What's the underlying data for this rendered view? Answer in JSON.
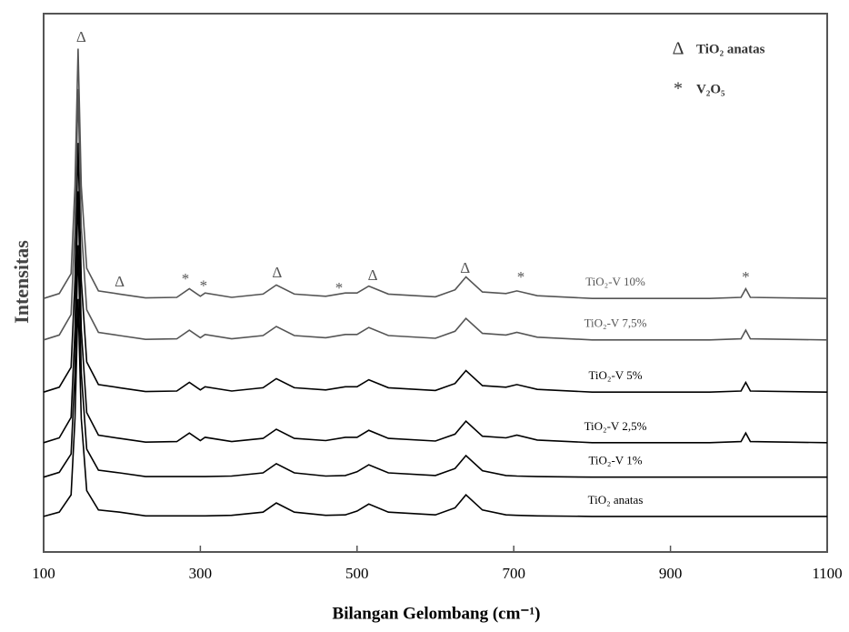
{
  "chart_data": {
    "type": "line",
    "xlabel": "Bilangan Gelombang (cm⁻¹)",
    "ylabel": "Intensitas",
    "x": [
      100,
      120,
      135,
      140,
      144,
      148,
      155,
      170,
      197,
      230,
      270,
      286,
      300,
      306,
      340,
      380,
      397,
      420,
      460,
      485,
      500,
      515,
      540,
      600,
      625,
      639,
      660,
      690,
      704,
      730,
      800,
      950,
      990,
      996,
      1002,
      1100
    ],
    "xlim": [
      100,
      1100
    ],
    "xticks": [
      100,
      300,
      500,
      700,
      900,
      1100
    ],
    "ylim": [
      0,
      100
    ],
    "series": [
      {
        "name": "TiO₂ anatas",
        "color": "#000000",
        "values": [
          6.6,
          7.4,
          10.6,
          24.8,
          47,
          24.8,
          11.4,
          7.8,
          7.4,
          6.7,
          6.7,
          6.7,
          6.7,
          6.7,
          6.8,
          7.4,
          9.1,
          7.4,
          6.8,
          6.9,
          7.6,
          8.9,
          7.4,
          6.9,
          8.2,
          10.6,
          7.8,
          6.9,
          6.8,
          6.7,
          6.6,
          6.6,
          6.6,
          6.6,
          6.6,
          6.6
        ]
      },
      {
        "name": "TiO₂-V 1%",
        "color": "#000000",
        "values": [
          13.9,
          14.8,
          18.2,
          33.3,
          57,
          33.3,
          19.1,
          15.2,
          14.7,
          14,
          14,
          14,
          14,
          14,
          14.1,
          14.7,
          16.4,
          14.7,
          14.1,
          14.2,
          14.9,
          16.2,
          14.7,
          14.2,
          15.5,
          17.9,
          15.1,
          14.2,
          14.1,
          14,
          13.9,
          13.9,
          13.9,
          13.9,
          13.9,
          13.9
        ]
      },
      {
        "name": "TiO₂-V 2,5%",
        "color": "#000000",
        "values": [
          20.3,
          21.2,
          25,
          41.3,
          67,
          41.3,
          25.9,
          21.7,
          21.1,
          20.4,
          20.5,
          22.1,
          20.7,
          21.3,
          20.5,
          21.1,
          22.8,
          21.1,
          20.7,
          21.3,
          21.3,
          22.6,
          21.1,
          20.6,
          21.9,
          24.3,
          21.5,
          21.2,
          21.7,
          20.8,
          20.3,
          20.3,
          20.5,
          22.1,
          20.5,
          20.3
        ]
      },
      {
        "name": "TiO₂-V 5%",
        "color": "#000000",
        "values": [
          29.7,
          30.6,
          34.3,
          50.5,
          76,
          50.5,
          35.3,
          31.1,
          30.5,
          29.8,
          29.9,
          31.5,
          30.1,
          30.7,
          29.9,
          30.5,
          32.2,
          30.5,
          30.1,
          30.7,
          30.7,
          32,
          30.5,
          30,
          31.3,
          33.7,
          30.9,
          30.6,
          31.1,
          30.2,
          29.7,
          29.7,
          29.9,
          31.5,
          29.9,
          29.7
        ]
      },
      {
        "name": "TiO₂-V 7,5%",
        "color": "#555555",
        "values": [
          39.4,
          40.3,
          44.1,
          60.4,
          86,
          60.4,
          45,
          40.8,
          40.2,
          39.5,
          39.6,
          41.2,
          39.8,
          40.4,
          39.6,
          40.2,
          41.9,
          40.2,
          39.8,
          40.4,
          40.4,
          41.7,
          40.2,
          39.7,
          41,
          43.4,
          40.6,
          40.3,
          40.8,
          39.9,
          39.4,
          39.4,
          39.6,
          41.2,
          39.6,
          39.4
        ]
      },
      {
        "name": "TiO₂-V 10%",
        "color": "#555555",
        "values": [
          47.1,
          48,
          51.7,
          68,
          93.5,
          68,
          52.7,
          48.5,
          47.9,
          47.2,
          47.3,
          48.9,
          47.5,
          48.1,
          47.3,
          47.9,
          49.6,
          47.9,
          47.5,
          48.1,
          48.1,
          49.4,
          47.9,
          47.4,
          48.7,
          51.1,
          48.3,
          48,
          48.5,
          47.6,
          47.1,
          47.1,
          47.3,
          48.9,
          47.3,
          47.1
        ]
      }
    ],
    "annotations": [
      {
        "text": "Δ",
        "x": 148,
        "y": 95.4
      },
      {
        "text": "Δ",
        "x": 197,
        "y": 50
      },
      {
        "text": "Δ",
        "x": 398,
        "y": 51.7
      },
      {
        "text": "Δ",
        "x": 520,
        "y": 51.2
      },
      {
        "text": "Δ",
        "x": 638,
        "y": 52.5
      },
      {
        "text": "*",
        "x": 281,
        "y": 50.5
      },
      {
        "text": "*",
        "x": 304,
        "y": 49.2
      },
      {
        "text": "*",
        "x": 477,
        "y": 48.8
      },
      {
        "text": "*",
        "x": 709,
        "y": 50.8
      },
      {
        "text": "*",
        "x": 996,
        "y": 50.8
      }
    ],
    "legend": [
      {
        "symbol": "Δ",
        "label": "TiO₂ anatas"
      },
      {
        "symbol": "*",
        "label": "V₂O₅"
      }
    ]
  }
}
